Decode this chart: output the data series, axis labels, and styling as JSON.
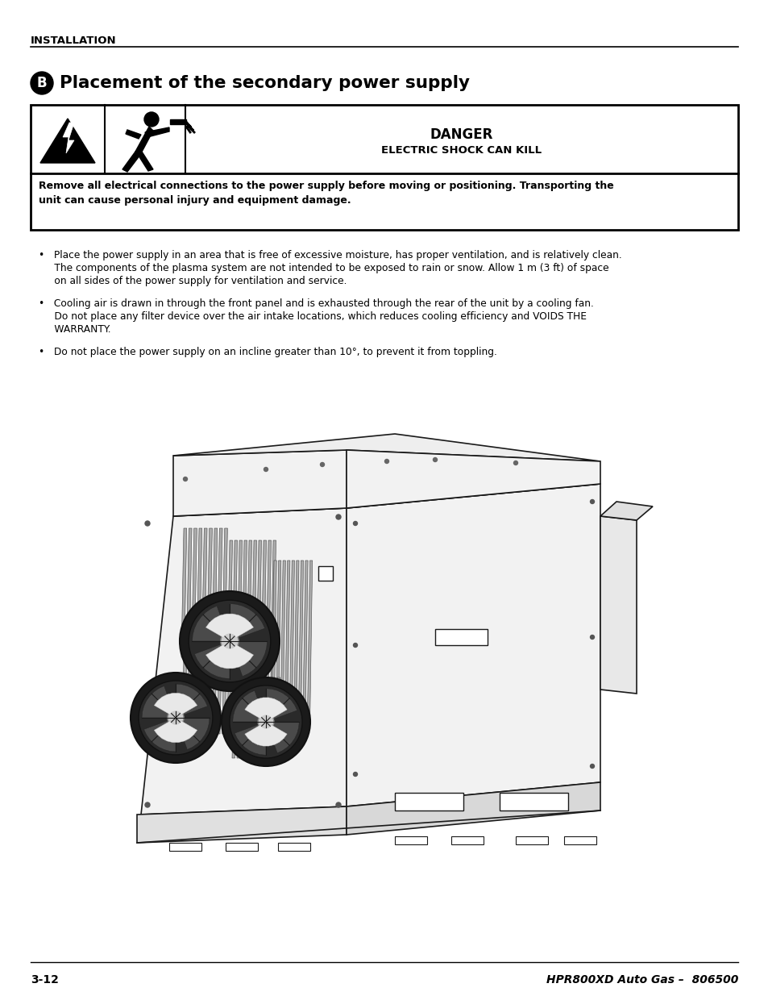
{
  "bg_color": "#ffffff",
  "header_text": "INSTALLATION",
  "section_title": "Placement of the secondary power supply",
  "danger_title": "DANGER",
  "danger_subtitle": "ELECTRIC SHOCK CAN KILL",
  "warning_line1": "Remove all electrical connections to the power supply before moving or positioning. Transporting the",
  "warning_line2": "unit can cause personal injury and equipment damage.",
  "bullet1_line1": "•   Place the power supply in an area that is free of excessive moisture, has proper ventilation, and is relatively clean.",
  "bullet1_line2": "     The components of the plasma system are not intended to be exposed to rain or snow. Allow 1 m (3 ft) of space",
  "bullet1_line3": "     on all sides of the power supply for ventilation and service.",
  "bullet2_line1": "•   Cooling air is drawn in through the front panel and is exhausted through the rear of the unit by a cooling fan.",
  "bullet2_line2": "     Do not place any filter device over the air intake locations, which reduces cooling efficiency and VOIDS THE",
  "bullet2_line3": "     WARRANTY.",
  "bullet3_line1": "•   Do not place the power supply on an incline greater than 10°, to prevent it from toppling.",
  "footer_left": "3-12",
  "footer_right": "HPR800XD Auto Gas –  806500"
}
